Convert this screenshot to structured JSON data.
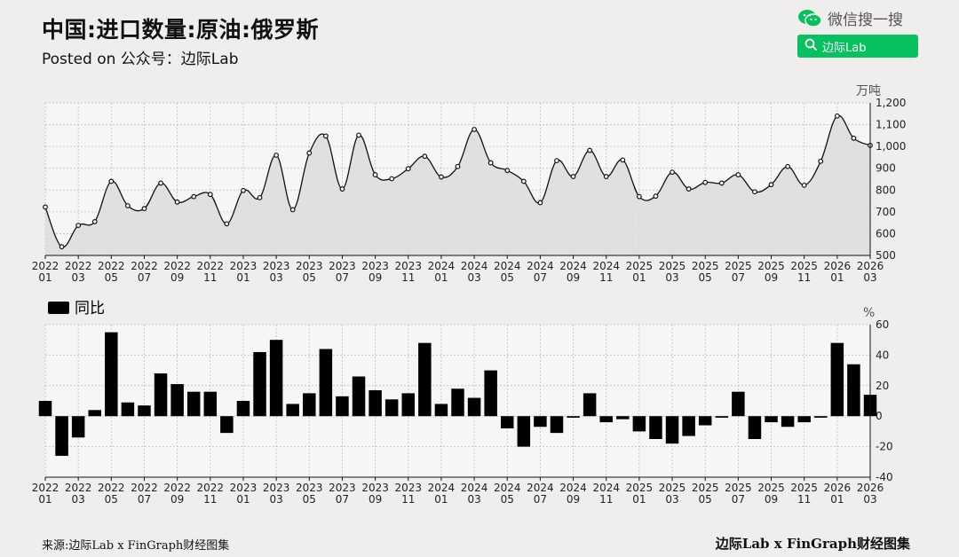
{
  "header": {
    "title": "中国:进口数量:原油:俄罗斯",
    "subtitle": "Posted on 公众号：边际Lab"
  },
  "brand": {
    "label": "微信搜一搜",
    "search_label": "边际Lab",
    "accent_color": "#07c160"
  },
  "footer": {
    "source": "来源:边际Lab x FinGraph财经图集",
    "credit": "边际Lab x FinGraph财经图集"
  },
  "chart_data": [
    {
      "type": "line",
      "unit": "万吨",
      "x": [
        "2022-01",
        "2022-02",
        "2022-03",
        "2022-04",
        "2022-05",
        "2022-06",
        "2022-07",
        "2022-08",
        "2022-09",
        "2022-10",
        "2022-11",
        "2022-12",
        "2023-01",
        "2023-02",
        "2023-03",
        "2023-04",
        "2023-05",
        "2023-06",
        "2023-07",
        "2023-08",
        "2023-09",
        "2023-10",
        "2023-11",
        "2023-12",
        "2024-01",
        "2024-02",
        "2024-03",
        "2024-04",
        "2024-05",
        "2024-06",
        "2024-07",
        "2024-08",
        "2024-09",
        "2024-10",
        "2024-11",
        "2024-12",
        "2025-01",
        "2025-02",
        "2025-03",
        "2025-04",
        "2025-05",
        "2025-06",
        "2025-07",
        "2025-08",
        "2025-09",
        "2025-10",
        "2025-11",
        "2025-12",
        "2026-01",
        "2026-02",
        "2026-03"
      ],
      "values": [
        722,
        540,
        638,
        655,
        840,
        728,
        715,
        832,
        745,
        770,
        780,
        645,
        798,
        765,
        960,
        710,
        970,
        1048,
        805,
        1052,
        870,
        852,
        898,
        955,
        860,
        908,
        1078,
        925,
        890,
        840,
        742,
        935,
        862,
        982,
        862,
        938,
        770,
        772,
        882,
        805,
        835,
        832,
        870,
        792,
        825,
        908,
        822,
        932,
        1140,
        1038,
        1005
      ],
      "ylim": [
        500,
        1200
      ],
      "yticks": [
        "500",
        "600",
        "700",
        "800",
        "900",
        "1,000",
        "1,100",
        "1,200"
      ],
      "grid": true,
      "line_color": "#111111",
      "area_color": "#dcdcdc"
    },
    {
      "type": "bar",
      "unit": "%",
      "legend": "同比",
      "values": [
        10,
        -26,
        -14,
        4,
        55,
        9,
        7,
        28,
        21,
        16,
        16,
        -11,
        10,
        42,
        50,
        8,
        15,
        44,
        13,
        26,
        17,
        11,
        15,
        48,
        8,
        18,
        12,
        30,
        -8,
        -20,
        -7,
        -11,
        -1,
        15,
        -4,
        -2,
        -10,
        -15,
        -18,
        -13,
        -6,
        -1,
        16,
        -15,
        -4,
        -7,
        -4,
        -1,
        48,
        34,
        14
      ],
      "ylim": [
        -40,
        60
      ],
      "yticks": [
        "-40",
        "-20",
        "0",
        "20",
        "40",
        "60"
      ],
      "grid": true,
      "bar_color": "#000000"
    }
  ],
  "x_tick_labels": {
    "years": [
      "2022",
      "2022",
      "2022",
      "2022",
      "2022",
      "2022",
      "2023",
      "2023",
      "2023",
      "2023",
      "2023",
      "2023",
      "2024",
      "2024",
      "2024",
      "2024",
      "2024",
      "2024",
      "2025",
      "2025",
      "2025",
      "2025",
      "2025",
      "2025",
      "2026",
      "2026"
    ],
    "months": [
      "01",
      "03",
      "05",
      "07",
      "09",
      "11",
      "01",
      "03",
      "05",
      "07",
      "09",
      "11",
      "01",
      "03",
      "05",
      "07",
      "09",
      "11",
      "01",
      "03",
      "05",
      "07",
      "09",
      "11",
      "01",
      "03"
    ]
  }
}
